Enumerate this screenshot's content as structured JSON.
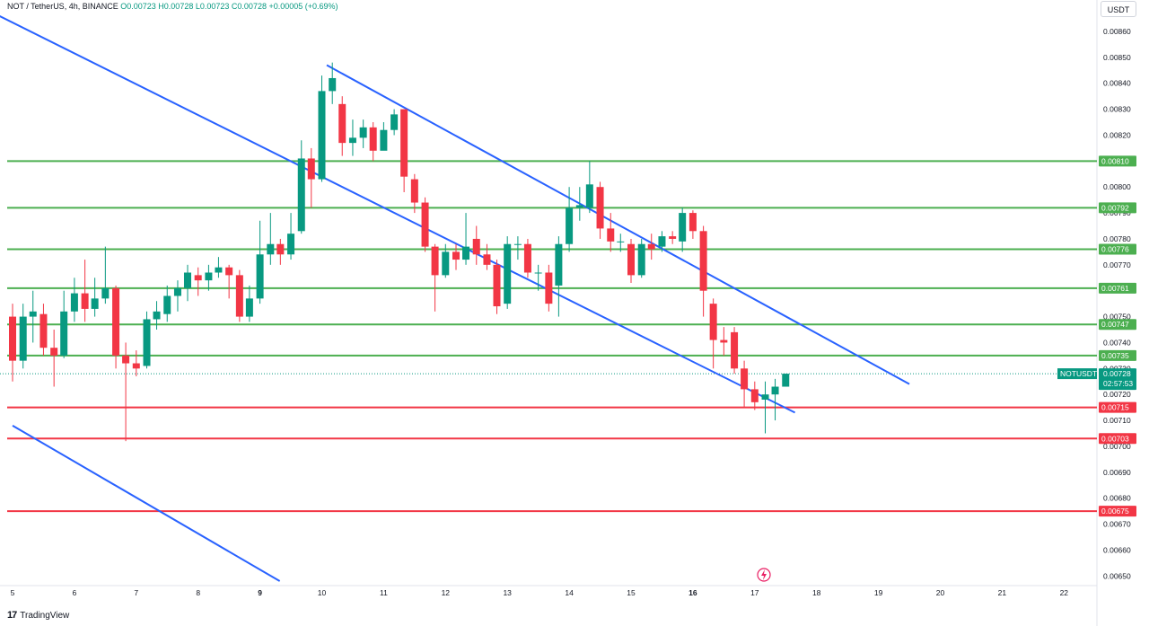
{
  "header": {
    "symbol": "NOT / TetherUS, 4h, BINANCE",
    "open": "O0.00723",
    "high": "H0.00728",
    "low": "L0.00723",
    "close": "C0.00728",
    "change": "+0.00005 (+0.69%)"
  },
  "currency_label": "USDT",
  "brand": {
    "logo": "17",
    "name": "TradingView"
  },
  "colors": {
    "up": "#089981",
    "down": "#f23645",
    "support_resistance_up": "#4caf50",
    "support_down": "#f23645",
    "trendline": "#2962ff"
  },
  "chart_data": {
    "type": "candlestick",
    "title": "NOT / TetherUS, 4h, BINANCE",
    "x_ticks": [
      "5",
      "6",
      "7",
      "8",
      "9",
      "10",
      "11",
      "12",
      "13",
      "14",
      "15",
      "16",
      "17",
      "18",
      "19",
      "20",
      "21",
      "22"
    ],
    "y_ticks": [
      "0.00860",
      "0.00850",
      "0.00840",
      "0.00830",
      "0.00820",
      "0.00810",
      "0.00800",
      "0.00790",
      "0.00780",
      "0.00770",
      "0.00760",
      "0.00750",
      "0.00740",
      "0.00730",
      "0.00720",
      "0.00710",
      "0.00700",
      "0.00690",
      "0.00680",
      "0.00670",
      "0.00660",
      "0.00650"
    ],
    "ylim": [
      0.00645,
      0.00865
    ],
    "xlim": [
      5.0,
      22.3
    ],
    "candles": [
      [
        5.0,
        0.0075,
        0.00733,
        0.00755,
        0.00725
      ],
      [
        5.17,
        0.00733,
        0.0075,
        0.00755,
        0.0073
      ],
      [
        5.33,
        0.0075,
        0.00752,
        0.0076,
        0.0074
      ],
      [
        5.5,
        0.00751,
        0.00738,
        0.00755,
        0.00735
      ],
      [
        5.67,
        0.00738,
        0.00735,
        0.00745,
        0.00723
      ],
      [
        5.83,
        0.00735,
        0.00752,
        0.0076,
        0.00734
      ],
      [
        6.0,
        0.00752,
        0.00759,
        0.00765,
        0.00748
      ],
      [
        6.17,
        0.00759,
        0.00753,
        0.00772,
        0.00748
      ],
      [
        6.33,
        0.00753,
        0.00757,
        0.00765,
        0.0075
      ],
      [
        6.5,
        0.00757,
        0.00761,
        0.00777,
        0.00755
      ],
      [
        6.67,
        0.00761,
        0.00735,
        0.00762,
        0.0073
      ],
      [
        6.83,
        0.00735,
        0.00732,
        0.0074,
        0.00702
      ],
      [
        7.0,
        0.00732,
        0.0073,
        0.00737,
        0.00727
      ],
      [
        7.17,
        0.00731,
        0.00749,
        0.00752,
        0.0073
      ],
      [
        7.33,
        0.00749,
        0.00752,
        0.00756,
        0.00745
      ],
      [
        7.5,
        0.00751,
        0.00758,
        0.00762,
        0.00748
      ],
      [
        7.67,
        0.00758,
        0.00761,
        0.00764,
        0.00752
      ],
      [
        7.83,
        0.00761,
        0.00767,
        0.0077,
        0.00756
      ],
      [
        8.0,
        0.00766,
        0.00764,
        0.00769,
        0.00758
      ],
      [
        8.17,
        0.00764,
        0.00767,
        0.0077,
        0.0076
      ],
      [
        8.33,
        0.00767,
        0.00769,
        0.00773,
        0.00765
      ],
      [
        8.5,
        0.00769,
        0.00766,
        0.0077,
        0.00757
      ],
      [
        8.67,
        0.00766,
        0.0075,
        0.00768,
        0.00748
      ],
      [
        8.83,
        0.0075,
        0.00757,
        0.00762,
        0.00748
      ],
      [
        9.0,
        0.00757,
        0.00774,
        0.00787,
        0.00755
      ],
      [
        9.17,
        0.00774,
        0.00778,
        0.0079,
        0.0077
      ],
      [
        9.33,
        0.00778,
        0.00774,
        0.0078,
        0.0077
      ],
      [
        9.5,
        0.00774,
        0.00782,
        0.0079,
        0.00772
      ],
      [
        9.67,
        0.00783,
        0.00811,
        0.00818,
        0.00782
      ],
      [
        9.83,
        0.00811,
        0.00803,
        0.00815,
        0.00792
      ],
      [
        10.0,
        0.00803,
        0.00837,
        0.00843,
        0.00802
      ],
      [
        10.17,
        0.00837,
        0.00842,
        0.00848,
        0.00832
      ],
      [
        10.33,
        0.00832,
        0.00817,
        0.00835,
        0.00812
      ],
      [
        10.5,
        0.00817,
        0.00819,
        0.00826,
        0.00812
      ],
      [
        10.67,
        0.00819,
        0.00823,
        0.00826,
        0.00815
      ],
      [
        10.83,
        0.00823,
        0.00814,
        0.00825,
        0.0081
      ],
      [
        11.0,
        0.00814,
        0.00822,
        0.00825,
        0.00815
      ],
      [
        11.17,
        0.00822,
        0.00828,
        0.0083,
        0.0082
      ],
      [
        11.33,
        0.0083,
        0.00804,
        0.0083,
        0.00798
      ],
      [
        11.5,
        0.00803,
        0.00794,
        0.00805,
        0.0079
      ],
      [
        11.67,
        0.00794,
        0.00777,
        0.00796,
        0.00775
      ],
      [
        11.83,
        0.00777,
        0.00766,
        0.00778,
        0.00752
      ],
      [
        12.0,
        0.00766,
        0.00775,
        0.00778,
        0.00765
      ],
      [
        12.17,
        0.00775,
        0.00772,
        0.00778,
        0.00768
      ],
      [
        12.33,
        0.00772,
        0.00777,
        0.0079,
        0.0077
      ],
      [
        12.5,
        0.0078,
        0.00774,
        0.00785,
        0.0077
      ],
      [
        12.67,
        0.00774,
        0.0077,
        0.00778,
        0.00768
      ],
      [
        12.83,
        0.0077,
        0.00754,
        0.00772,
        0.00751
      ],
      [
        13.0,
        0.00755,
        0.00778,
        0.00781,
        0.00753
      ],
      [
        13.17,
        0.00778,
        0.00778,
        0.00781,
        0.00772
      ],
      [
        13.33,
        0.00778,
        0.00767,
        0.0078,
        0.00765
      ],
      [
        13.5,
        0.00767,
        0.00767,
        0.0077,
        0.0076
      ],
      [
        13.67,
        0.00767,
        0.00755,
        0.0077,
        0.00752
      ],
      [
        13.83,
        0.00762,
        0.00778,
        0.00781,
        0.0075
      ],
      [
        14.0,
        0.00778,
        0.00792,
        0.008,
        0.00775
      ],
      [
        14.17,
        0.00792,
        0.00793,
        0.008,
        0.00787
      ],
      [
        14.33,
        0.00792,
        0.00801,
        0.0081,
        0.0079
      ],
      [
        14.5,
        0.008,
        0.00784,
        0.00802,
        0.0078
      ],
      [
        14.67,
        0.00784,
        0.00779,
        0.0079,
        0.00775
      ],
      [
        14.83,
        0.00779,
        0.00779,
        0.00782,
        0.00775
      ],
      [
        15.0,
        0.00778,
        0.00766,
        0.0078,
        0.00763
      ],
      [
        15.17,
        0.00766,
        0.00778,
        0.0078,
        0.00765
      ],
      [
        15.33,
        0.00778,
        0.00776,
        0.00782,
        0.00772
      ],
      [
        15.5,
        0.00777,
        0.00781,
        0.00783,
        0.00775
      ],
      [
        15.67,
        0.00781,
        0.0078,
        0.00783,
        0.00778
      ],
      [
        15.83,
        0.00779,
        0.0079,
        0.00792,
        0.00775
      ],
      [
        16.0,
        0.0079,
        0.00783,
        0.00791,
        0.0078
      ],
      [
        16.17,
        0.00783,
        0.0076,
        0.00785,
        0.0075
      ],
      [
        16.33,
        0.00755,
        0.00741,
        0.00757,
        0.0073
      ],
      [
        16.5,
        0.00741,
        0.0074,
        0.00746,
        0.00735
      ],
      [
        16.67,
        0.00744,
        0.0073,
        0.00746,
        0.00728
      ],
      [
        16.83,
        0.0073,
        0.00722,
        0.00733,
        0.00715
      ],
      [
        17.0,
        0.00722,
        0.00717,
        0.00725,
        0.00714
      ],
      [
        17.17,
        0.00718,
        0.0072,
        0.00725,
        0.00705
      ],
      [
        17.33,
        0.0072,
        0.00723,
        0.00726,
        0.0071
      ],
      [
        17.5,
        0.00723,
        0.00728,
        0.00728,
        0.00723
      ]
    ],
    "horizontal_levels": [
      {
        "price": 0.0081,
        "label": "0.00810",
        "color": "#4caf50"
      },
      {
        "price": 0.00792,
        "label": "0.00792",
        "color": "#4caf50"
      },
      {
        "price": 0.00776,
        "label": "0.00776",
        "color": "#4caf50"
      },
      {
        "price": 0.00761,
        "label": "0.00761",
        "color": "#4caf50"
      },
      {
        "price": 0.00747,
        "label": "0.00747",
        "color": "#4caf50"
      },
      {
        "price": 0.00735,
        "label": "0.00735",
        "color": "#4caf50"
      },
      {
        "price": 0.00715,
        "label": "0.00715",
        "color": "#f23645"
      },
      {
        "price": 0.00703,
        "label": "0.00703",
        "color": "#f23645"
      },
      {
        "price": 0.00675,
        "label": "0.00675",
        "color": "#f23645"
      }
    ],
    "trendlines": [
      {
        "from": [
          4.7,
          0.00867
        ],
        "to": [
          17.65,
          0.00713
        ]
      },
      {
        "from": [
          10.08,
          0.00847
        ],
        "to": [
          19.5,
          0.00724
        ]
      },
      {
        "from": [
          5.0,
          0.00708
        ],
        "to": [
          9.32,
          0.00648
        ]
      }
    ],
    "last_price": {
      "symbol": "NOTUSDT",
      "price": "0.00728",
      "countdown": "02:57:53",
      "value": 0.00728
    }
  }
}
